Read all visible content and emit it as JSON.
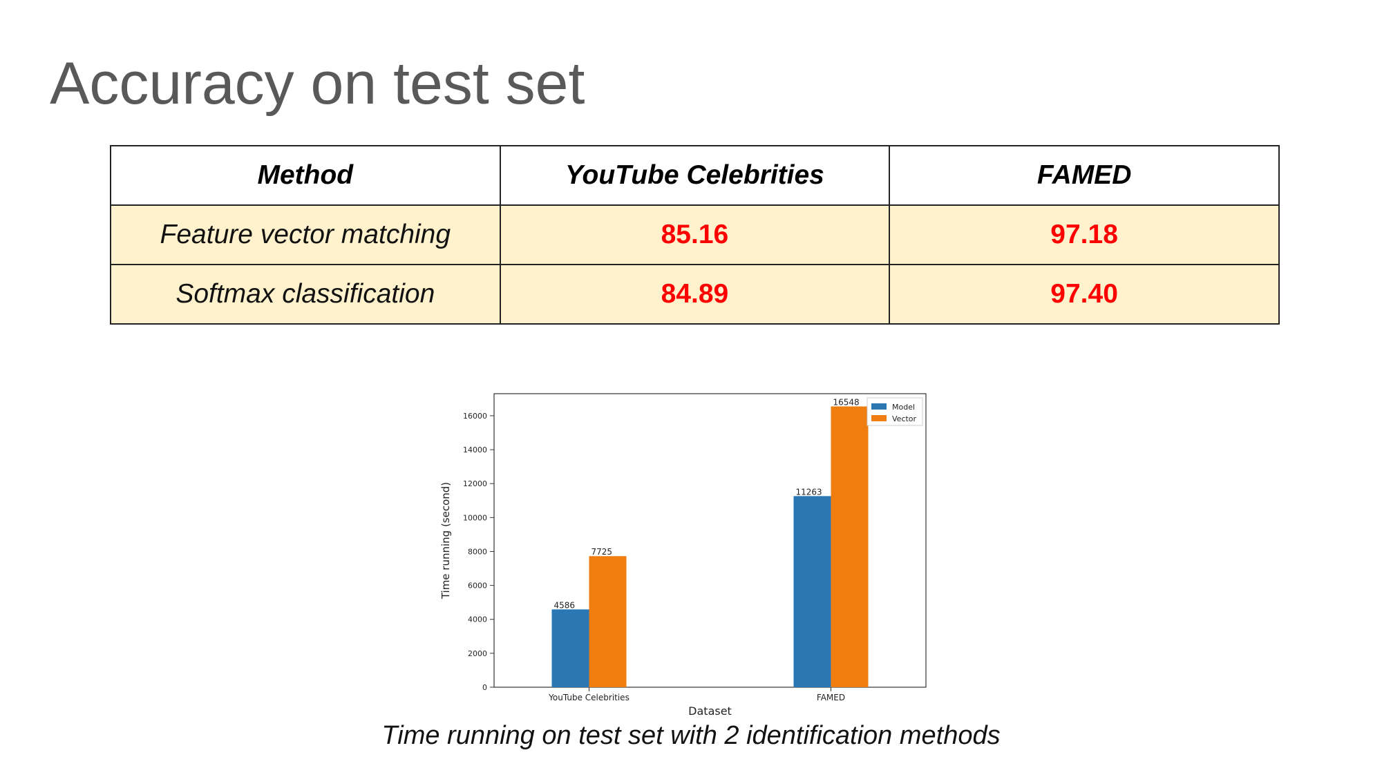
{
  "slide": {
    "title": "Accuracy on test set",
    "caption": "Time running on test set with 2 identification methods"
  },
  "table": {
    "headers": [
      "Method",
      "YouTube Celebrities",
      "FAMED"
    ],
    "rows": [
      [
        "Feature vector matching",
        "85.16",
        "97.18"
      ],
      [
        "Softmax classification",
        "84.89",
        "97.40"
      ]
    ],
    "header_bg": "#ffffff",
    "row_bg": "#fff2cc",
    "value_color": "#ff0000"
  },
  "chart_data": {
    "type": "bar",
    "categories": [
      "YouTube Celebrities",
      "FAMED"
    ],
    "series": [
      {
        "name": "Model",
        "values": [
          4586,
          11263
        ],
        "color": "#2b77b4"
      },
      {
        "name": "Vector",
        "values": [
          7725,
          16548
        ],
        "color": "#ef7d10"
      }
    ],
    "xlabel": "Dataset",
    "ylabel": "Time running (second)",
    "ylim": [
      0,
      17300
    ],
    "yticks": [
      0,
      2000,
      4000,
      6000,
      8000,
      10000,
      12000,
      14000,
      16000
    ],
    "legend": "top-right",
    "grid": false,
    "data_labels": true
  }
}
